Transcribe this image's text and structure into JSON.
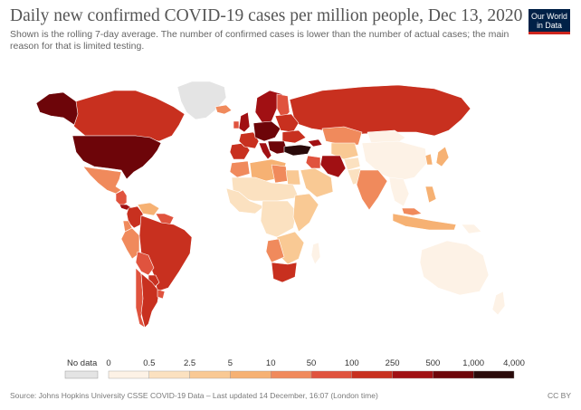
{
  "header": {
    "title": "Daily new confirmed COVID-19 cases per million people, Dec 13, 2020",
    "subtitle": "Shown is the rolling 7-day average. The number of confirmed cases is lower than the number of actual cases; the main reason for that is limited testing.",
    "logo_line1": "Our World",
    "logo_line2": "in Data"
  },
  "legend": {
    "no_data_label": "No data",
    "no_data_color": "#e4e4e4",
    "tick_labels": [
      "0",
      "0.5",
      "2.5",
      "5",
      "10",
      "50",
      "100",
      "250",
      "500",
      "1,000",
      "4,000"
    ],
    "bin_colors": [
      "#fdf2e6",
      "#fbe1c0",
      "#f9c994",
      "#f6b173",
      "#f08a5c",
      "#e0533e",
      "#c8301f",
      "#a11013",
      "#6d0509",
      "#2a0a0a"
    ]
  },
  "map_regions": [
    {
      "name": "Greenland",
      "color": "#e4e4e4"
    },
    {
      "name": "Canada",
      "color": "#c8301f"
    },
    {
      "name": "Alaska",
      "color": "#6d0509"
    },
    {
      "name": "United States",
      "color": "#6d0509"
    },
    {
      "name": "Mexico",
      "color": "#f08a5c"
    },
    {
      "name": "Central America",
      "color": "#e0533e"
    },
    {
      "name": "Panama",
      "color": "#a11013"
    },
    {
      "name": "Colombia",
      "color": "#c8301f"
    },
    {
      "name": "Venezuela",
      "color": "#f6b173"
    },
    {
      "name": "Guiana Shield",
      "color": "#e0533e"
    },
    {
      "name": "Ecuador",
      "color": "#f08a5c"
    },
    {
      "name": "Peru",
      "color": "#f08a5c"
    },
    {
      "name": "Brazil",
      "color": "#c8301f"
    },
    {
      "name": "Bolivia",
      "color": "#e0533e"
    },
    {
      "name": "Paraguay",
      "color": "#c8301f"
    },
    {
      "name": "Chile",
      "color": "#e0533e"
    },
    {
      "name": "Argentina",
      "color": "#c8301f"
    },
    {
      "name": "Uruguay",
      "color": "#e0533e"
    },
    {
      "name": "Iceland",
      "color": "#f08a5c"
    },
    {
      "name": "Scandinavia",
      "color": "#a11013"
    },
    {
      "name": "Finland",
      "color": "#e0533e"
    },
    {
      "name": "Russia",
      "color": "#c8301f"
    },
    {
      "name": "United Kingdom",
      "color": "#a11013"
    },
    {
      "name": "Ireland",
      "color": "#e0533e"
    },
    {
      "name": "Iberia",
      "color": "#c8301f"
    },
    {
      "name": "France",
      "color": "#c8301f"
    },
    {
      "name": "Central Europe",
      "color": "#6d0509"
    },
    {
      "name": "Eastern Europe",
      "color": "#c8301f"
    },
    {
      "name": "Ukraine",
      "color": "#c8301f"
    },
    {
      "name": "Italy",
      "color": "#a11013"
    },
    {
      "name": "Balkans",
      "color": "#6d0509"
    },
    {
      "name": "Turkey",
      "color": "#2a0a0a"
    },
    {
      "name": "Caucasus",
      "color": "#a11013"
    },
    {
      "name": "Kazakhstan",
      "color": "#f08a5c"
    },
    {
      "name": "Mongolia",
      "color": "#fdf2e6"
    },
    {
      "name": "China",
      "color": "#fdf2e6"
    },
    {
      "name": "Central Asia",
      "color": "#f9c994"
    },
    {
      "name": "Iran",
      "color": "#a11013"
    },
    {
      "name": "Iraq",
      "color": "#e0533e"
    },
    {
      "name": "Arabia",
      "color": "#f9c994"
    },
    {
      "name": "Afghanistan",
      "color": "#fbe1c0"
    },
    {
      "name": "Pakistan",
      "color": "#fbe1c0"
    },
    {
      "name": "India",
      "color": "#f08a5c"
    },
    {
      "name": "Southeast Asia",
      "color": "#fdf2e6"
    },
    {
      "name": "Japan",
      "color": "#f6b173"
    },
    {
      "name": "Korea",
      "color": "#f6b173"
    },
    {
      "name": "Indonesia",
      "color": "#f6b173"
    },
    {
      "name": "Philippines",
      "color": "#f6b173"
    },
    {
      "name": "Malaysia",
      "color": "#f08a5c"
    },
    {
      "name": "Papua New Guinea",
      "color": "#fdf2e6"
    },
    {
      "name": "Australia",
      "color": "#fdf2e6"
    },
    {
      "name": "New Zealand",
      "color": "#fdf2e6"
    },
    {
      "name": "North Africa",
      "color": "#f6b173"
    },
    {
      "name": "Morocco",
      "color": "#f08a5c"
    },
    {
      "name": "Libya",
      "color": "#f08a5c"
    },
    {
      "name": "Egypt",
      "color": "#f9c994"
    },
    {
      "name": "Sahel",
      "color": "#fbe1c0"
    },
    {
      "name": "West Africa",
      "color": "#fbe1c0"
    },
    {
      "name": "Central Africa",
      "color": "#fbe1c0"
    },
    {
      "name": "East Africa",
      "color": "#f9c994"
    },
    {
      "name": "Southern Africa",
      "color": "#f9c994"
    },
    {
      "name": "Namibia & Botswana",
      "color": "#f08a5c"
    },
    {
      "name": "South Africa",
      "color": "#c8301f"
    },
    {
      "name": "Madagascar",
      "color": "#fdf2e6"
    }
  ],
  "footer": {
    "source": "Source: Johns Hopkins University CSSE COVID-19 Data – Last updated 14 December, 16:07 (London time)",
    "license": "CC BY"
  }
}
